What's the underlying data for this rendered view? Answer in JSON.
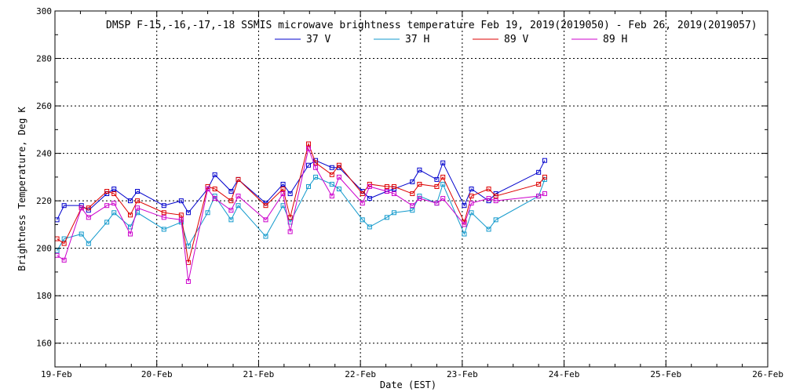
{
  "chart_data": {
    "type": "line",
    "title": "DMSP F-15,-16,-17,-18 SSMIS microwave brightness temperature Feb 19, 2019(2019050) - Feb 26, 2019(2019057)",
    "xlabel": "Date (EST)",
    "ylabel": "Brightness Temperature, Deg K",
    "xlim": [
      0,
      7
    ],
    "ylim": [
      150,
      300
    ],
    "y_ticks": [
      160,
      180,
      200,
      220,
      240,
      260,
      280,
      300
    ],
    "x_ticks": [
      {
        "value": 0,
        "label": "19-Feb"
      },
      {
        "value": 1,
        "label": "20-Feb"
      },
      {
        "value": 2,
        "label": "21-Feb"
      },
      {
        "value": 3,
        "label": "22-Feb"
      },
      {
        "value": 4,
        "label": "23-Feb"
      },
      {
        "value": 5,
        "label": "24-Feb"
      },
      {
        "value": 6,
        "label": "25-Feb"
      },
      {
        "value": 7,
        "label": "26-Feb"
      }
    ],
    "grid": true,
    "legend_position": "top-center",
    "series": [
      {
        "name": "37 V",
        "color": "#0000cc",
        "points": [
          [
            0.02,
            212
          ],
          [
            0.09,
            218
          ],
          [
            0.26,
            218
          ],
          [
            0.33,
            216
          ],
          [
            0.51,
            223
          ],
          [
            0.58,
            225
          ],
          [
            0.74,
            220
          ],
          [
            0.81,
            224
          ],
          [
            1.07,
            218
          ],
          [
            1.24,
            220
          ],
          [
            1.31,
            215
          ],
          [
            1.5,
            225
          ],
          [
            1.57,
            231
          ],
          [
            1.73,
            224
          ],
          [
            1.8,
            229
          ],
          [
            2.07,
            219
          ],
          [
            2.24,
            227
          ],
          [
            2.31,
            223
          ],
          [
            2.49,
            235
          ],
          [
            2.56,
            237
          ],
          [
            2.72,
            234
          ],
          [
            2.79,
            234
          ],
          [
            3.02,
            224
          ],
          [
            3.09,
            221
          ],
          [
            3.26,
            224
          ],
          [
            3.33,
            225
          ],
          [
            3.51,
            228
          ],
          [
            3.58,
            233
          ],
          [
            3.75,
            229
          ],
          [
            3.81,
            236
          ],
          [
            4.02,
            218
          ],
          [
            4.09,
            225
          ],
          [
            4.26,
            220
          ],
          [
            4.33,
            223
          ],
          [
            4.75,
            232
          ],
          [
            4.81,
            237
          ]
        ]
      },
      {
        "name": "37 H",
        "color": "#1199cc",
        "points": [
          [
            0.02,
            199
          ],
          [
            0.09,
            204
          ],
          [
            0.26,
            206
          ],
          [
            0.33,
            202
          ],
          [
            0.51,
            211
          ],
          [
            0.58,
            215
          ],
          [
            0.74,
            209
          ],
          [
            0.81,
            215
          ],
          [
            1.07,
            208
          ],
          [
            1.24,
            211
          ],
          [
            1.31,
            201
          ],
          [
            1.5,
            215
          ],
          [
            1.57,
            222
          ],
          [
            1.73,
            212
          ],
          [
            1.8,
            218
          ],
          [
            2.07,
            205
          ],
          [
            2.24,
            218
          ],
          [
            2.31,
            211
          ],
          [
            2.49,
            226
          ],
          [
            2.56,
            230
          ],
          [
            2.72,
            227
          ],
          [
            2.79,
            225
          ],
          [
            3.02,
            212
          ],
          [
            3.09,
            209
          ],
          [
            3.26,
            213
          ],
          [
            3.33,
            215
          ],
          [
            3.51,
            216
          ],
          [
            3.58,
            222
          ],
          [
            3.75,
            219
          ],
          [
            3.81,
            227
          ],
          [
            4.02,
            206
          ],
          [
            4.09,
            215
          ],
          [
            4.26,
            208
          ],
          [
            4.33,
            212
          ],
          [
            4.75,
            222
          ],
          [
            4.81,
            229
          ]
        ]
      },
      {
        "name": "89 V",
        "color": "#dd0000",
        "points": [
          [
            0.02,
            204
          ],
          [
            0.09,
            202
          ],
          [
            0.26,
            217
          ],
          [
            0.33,
            217
          ],
          [
            0.51,
            224
          ],
          [
            0.58,
            223
          ],
          [
            0.74,
            214
          ],
          [
            0.81,
            220
          ],
          [
            1.07,
            215
          ],
          [
            1.24,
            214
          ],
          [
            1.31,
            194
          ],
          [
            1.5,
            226
          ],
          [
            1.57,
            225
          ],
          [
            1.73,
            220
          ],
          [
            1.8,
            229
          ],
          [
            2.07,
            218
          ],
          [
            2.24,
            225
          ],
          [
            2.31,
            213
          ],
          [
            2.49,
            244
          ],
          [
            2.56,
            236
          ],
          [
            2.72,
            231
          ],
          [
            2.79,
            235
          ],
          [
            3.02,
            223
          ],
          [
            3.09,
            227
          ],
          [
            3.26,
            226
          ],
          [
            3.33,
            226
          ],
          [
            3.51,
            223
          ],
          [
            3.58,
            227
          ],
          [
            3.75,
            226
          ],
          [
            3.81,
            230
          ],
          [
            4.02,
            211
          ],
          [
            4.09,
            222
          ],
          [
            4.26,
            225
          ],
          [
            4.33,
            222
          ],
          [
            4.75,
            227
          ],
          [
            4.81,
            230
          ]
        ]
      },
      {
        "name": "89 H",
        "color": "#cc00cc",
        "points": [
          [
            0.02,
            197
          ],
          [
            0.09,
            195
          ],
          [
            0.26,
            217
          ],
          [
            0.33,
            213
          ],
          [
            0.51,
            218
          ],
          [
            0.58,
            219
          ],
          [
            0.74,
            206
          ],
          [
            0.81,
            217
          ],
          [
            1.07,
            213
          ],
          [
            1.24,
            212
          ],
          [
            1.31,
            186
          ],
          [
            1.5,
            225
          ],
          [
            1.57,
            221
          ],
          [
            1.73,
            216
          ],
          [
            1.8,
            222
          ],
          [
            2.07,
            212
          ],
          [
            2.24,
            223
          ],
          [
            2.31,
            207
          ],
          [
            2.49,
            242
          ],
          [
            2.56,
            234
          ],
          [
            2.72,
            222
          ],
          [
            2.79,
            230
          ],
          [
            3.02,
            219
          ],
          [
            3.09,
            226
          ],
          [
            3.26,
            224
          ],
          [
            3.33,
            223
          ],
          [
            3.51,
            218
          ],
          [
            3.58,
            221
          ],
          [
            3.75,
            219
          ],
          [
            3.81,
            221
          ],
          [
            4.02,
            210
          ],
          [
            4.09,
            219
          ],
          [
            4.26,
            221
          ],
          [
            4.33,
            220
          ],
          [
            4.75,
            222
          ],
          [
            4.81,
            223
          ]
        ]
      }
    ]
  }
}
